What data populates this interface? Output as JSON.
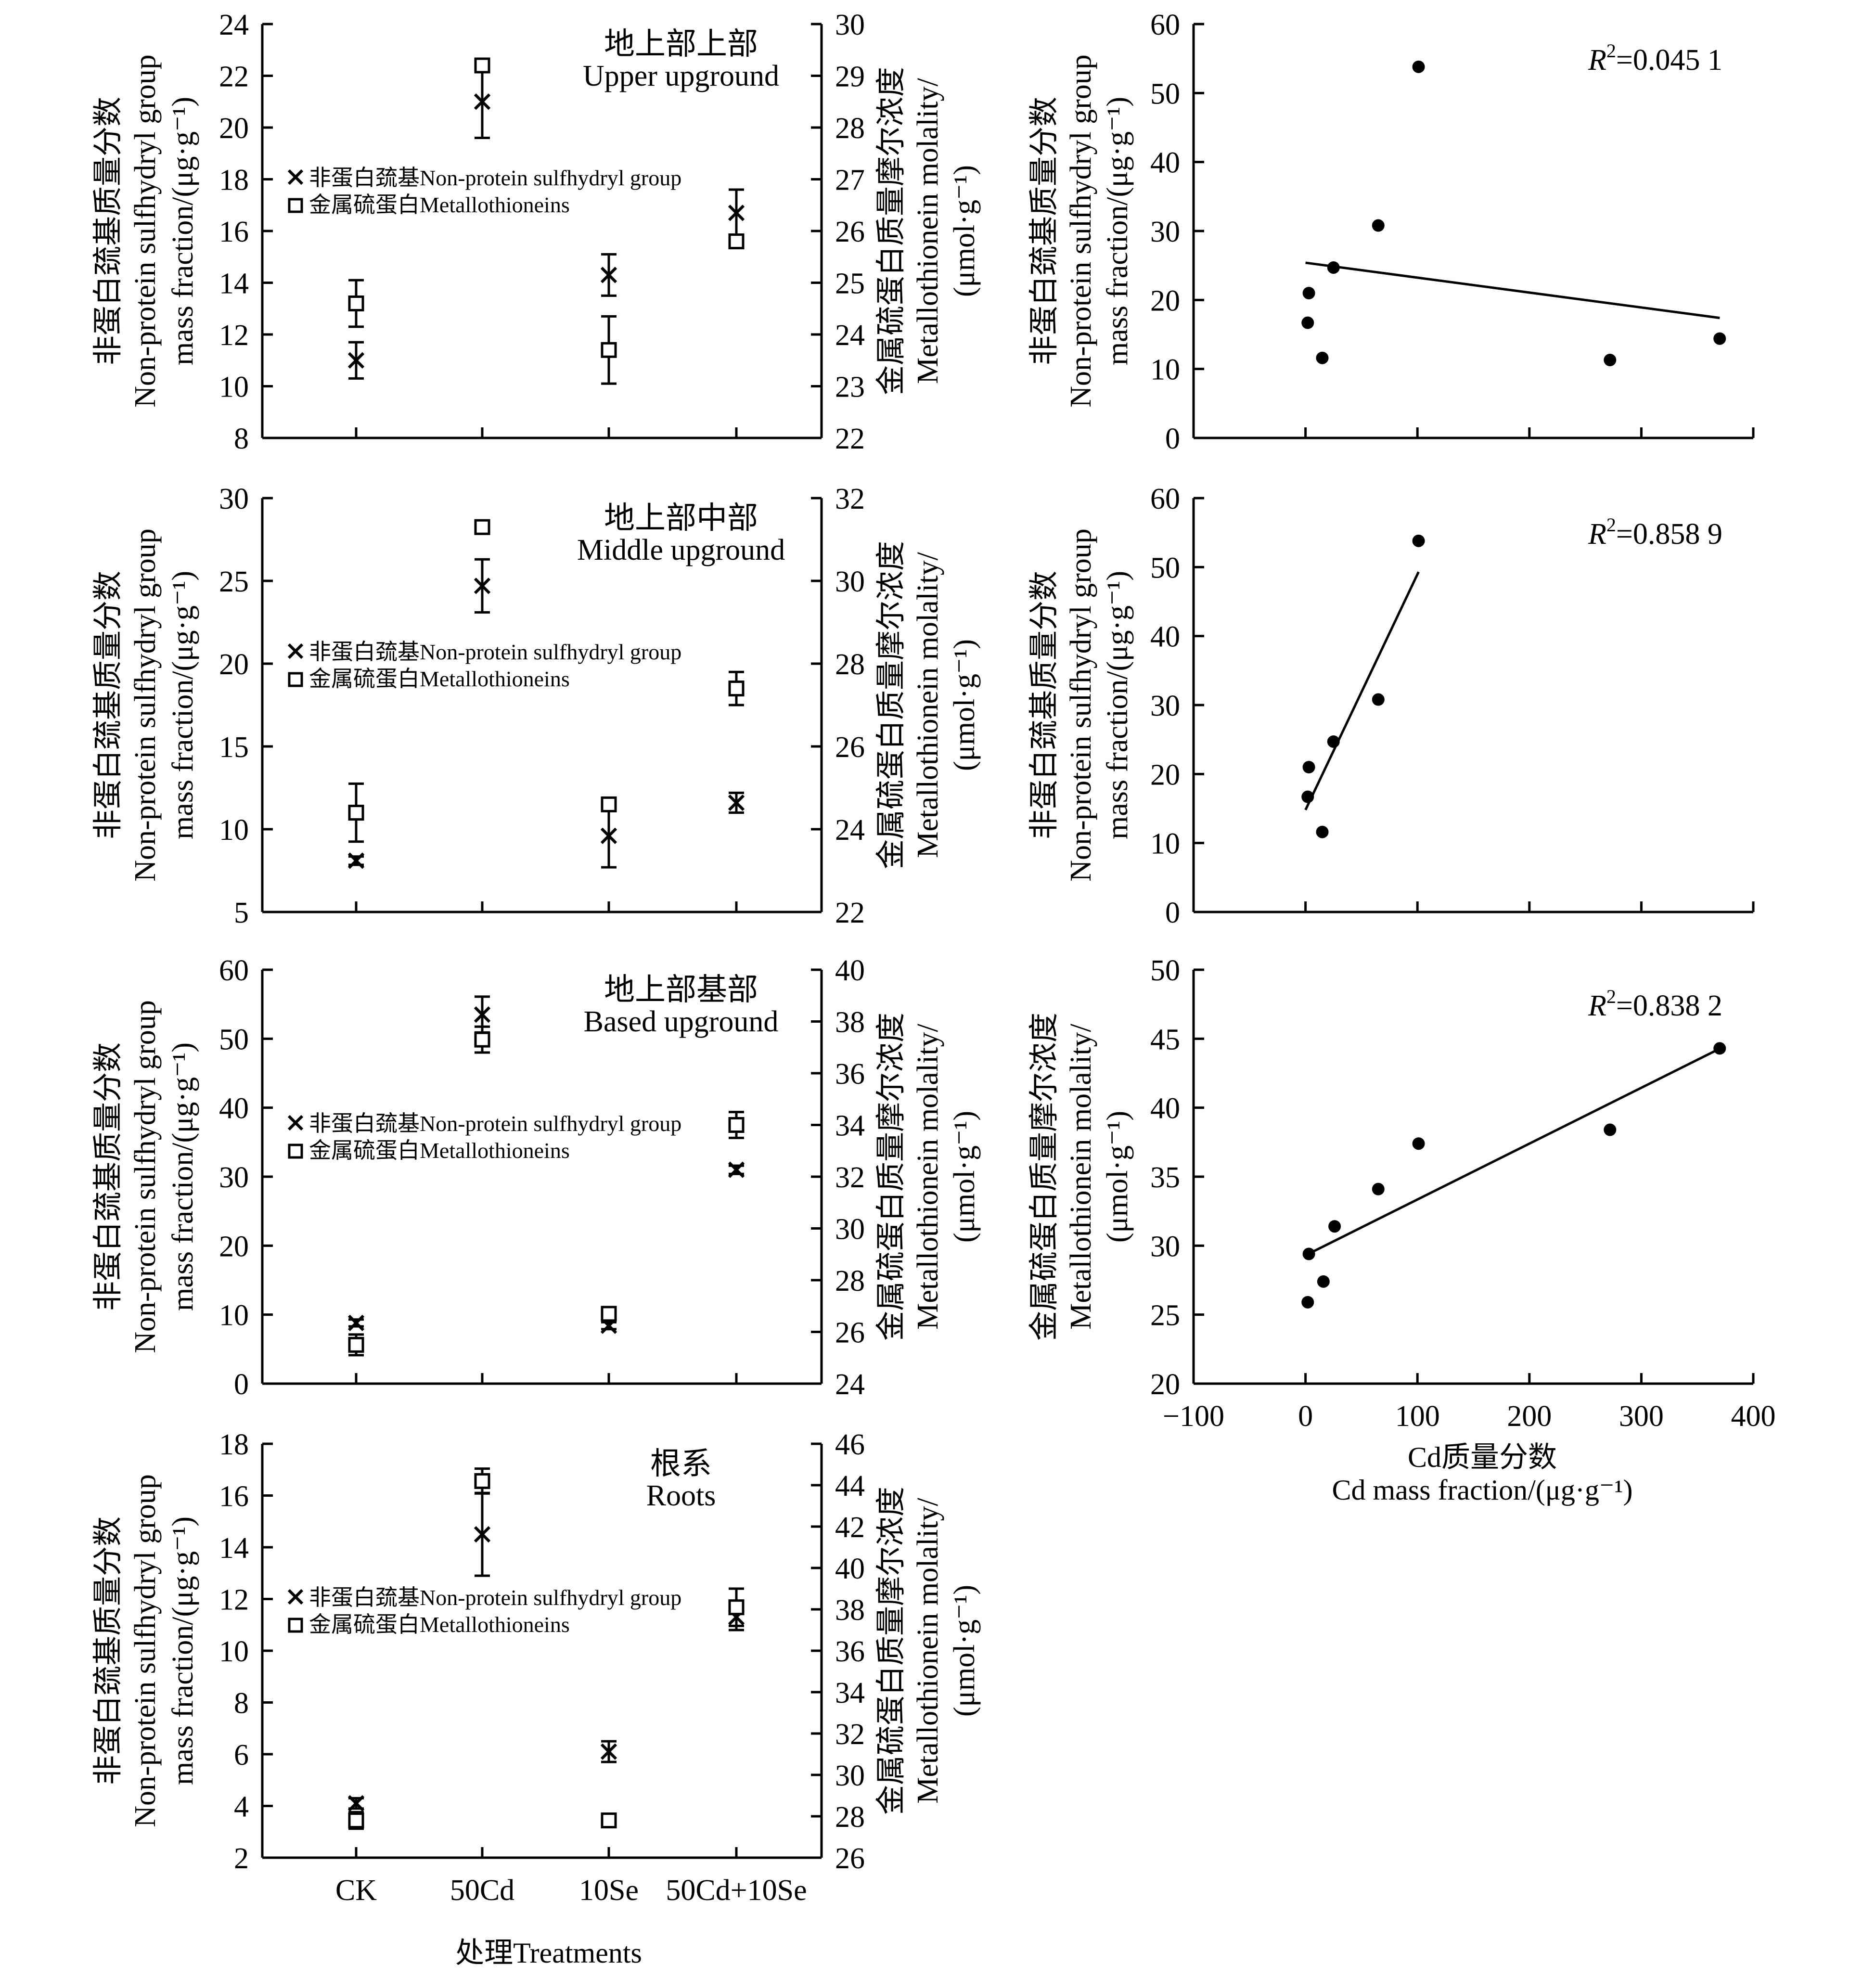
{
  "legend": {
    "nps": "非蛋白巯基Non-protein sulfhydryl group",
    "mt": "金属硫蛋白Metallothioneins"
  },
  "left_y_label": {
    "line1": "非蛋白巯基质量分数",
    "line2": "Non-protein sulfhydryl group",
    "line3": "mass fraction/(μg·g⁻¹)"
  },
  "right_y_label": {
    "line1": "金属硫蛋白质量摩尔浓度",
    "line2": "Metallothionein molality/",
    "line3": "(μmol·g⁻¹)"
  },
  "scatter_y_label_nps": {
    "line1": "非蛋白巯基质量分数",
    "line2": "Non-protein sulfhydryl group",
    "line3": "mass fraction/(μg·g⁻¹)"
  },
  "scatter_y_label_mt": {
    "line1": "金属硫蛋白质量摩尔浓度",
    "line2": "Metallothionein molality/",
    "line3": "(μmol·g⁻¹)"
  },
  "x_label_treatments": "处理Treatments",
  "x_label_cd": {
    "line1": "Cd质量分数",
    "line2": "Cd mass fraction/(μg·g⁻¹)"
  },
  "chart_data": [
    {
      "type": "scatter",
      "title_cn": "地上部上部",
      "title_en": "Upper upground",
      "categories": [
        "CK",
        "50Cd",
        "10Se",
        "50Cd+10Se"
      ],
      "ylim_left": [
        8,
        24
      ],
      "yticks_left": [
        8,
        10,
        12,
        14,
        16,
        18,
        20,
        22,
        24
      ],
      "ylim_right": [
        22,
        30
      ],
      "yticks_right": [
        22,
        23,
        24,
        25,
        26,
        27,
        28,
        29,
        30
      ],
      "series": [
        {
          "name": "非蛋白巯基Non-protein sulfhydryl group",
          "axis": "left",
          "marker": "x",
          "values": [
            11.0,
            21.0,
            14.3,
            16.7
          ],
          "errors": [
            0.7,
            1.4,
            0.8,
            0.9
          ]
        },
        {
          "name": "金属硫蛋白Metallothioneins",
          "axis": "right",
          "marker": "square",
          "values": [
            24.6,
            29.2,
            23.7,
            25.8
          ],
          "errors": [
            0.45,
            0.12,
            0.65,
            0.1
          ]
        }
      ]
    },
    {
      "type": "scatter",
      "title_cn": "地上部中部",
      "title_en": "Middle upground",
      "categories": [
        "CK",
        "50Cd",
        "10Se",
        "50Cd+10Se"
      ],
      "ylim_left": [
        5,
        30
      ],
      "yticks_left": [
        5,
        10,
        15,
        20,
        25,
        30
      ],
      "ylim_right": [
        22,
        32
      ],
      "yticks_right": [
        22,
        24,
        26,
        28,
        30,
        32
      ],
      "series": [
        {
          "name": "非蛋白巯基Non-protein sulfhydryl group",
          "axis": "left",
          "marker": "x",
          "values": [
            8.1,
            24.7,
            9.6,
            11.6
          ],
          "errors": [
            0.25,
            1.6,
            1.9,
            0.6
          ]
        },
        {
          "name": "金属硫蛋白Metallothioneins",
          "axis": "right",
          "marker": "square",
          "values": [
            24.4,
            31.3,
            24.6,
            27.4
          ],
          "errors": [
            0.7,
            0.1,
            0.1,
            0.4
          ]
        }
      ]
    },
    {
      "type": "scatter",
      "title_cn": "地上部基部",
      "title_en": "Based upground",
      "categories": [
        "CK",
        "50Cd",
        "10Se",
        "50Cd+10Se"
      ],
      "ylim_left": [
        0,
        60
      ],
      "yticks_left": [
        0,
        10,
        20,
        30,
        40,
        50,
        60
      ],
      "ylim_right": [
        24,
        40
      ],
      "yticks_right": [
        24,
        26,
        28,
        30,
        32,
        34,
        36,
        38,
        40
      ],
      "series": [
        {
          "name": "非蛋白巯基Non-protein sulfhydryl group",
          "axis": "left",
          "marker": "x",
          "values": [
            8.8,
            53.5,
            8.4,
            31.0
          ],
          "errors": [
            0.5,
            2.6,
            0.5,
            0.6
          ]
        },
        {
          "name": "金属硫蛋白Metallothioneins",
          "axis": "right",
          "marker": "square",
          "values": [
            25.5,
            37.3,
            26.7,
            34.0
          ],
          "errors": [
            0.4,
            0.5,
            0.15,
            0.5
          ]
        }
      ]
    },
    {
      "type": "scatter",
      "title_cn": "根系",
      "title_en": "Roots",
      "categories": [
        "CK",
        "50Cd",
        "10Se",
        "50Cd+10Se"
      ],
      "xlabel": "处理Treatments",
      "ylim_left": [
        2,
        18
      ],
      "yticks_left": [
        2,
        4,
        6,
        8,
        10,
        12,
        14,
        16,
        18
      ],
      "ylim_right": [
        26,
        46
      ],
      "yticks_right": [
        26,
        28,
        30,
        32,
        34,
        36,
        38,
        40,
        42,
        44,
        46
      ],
      "series": [
        {
          "name": "非蛋白巯基Non-protein sulfhydryl group",
          "axis": "left",
          "marker": "x",
          "values": [
            4.1,
            14.5,
            6.1,
            11.3
          ],
          "errors": [
            0.2,
            1.6,
            0.4,
            0.5
          ]
        },
        {
          "name": "金属硫蛋白Metallothioneins",
          "axis": "right",
          "marker": "square",
          "values": [
            27.8,
            44.2,
            27.8,
            38.1
          ],
          "errors": [
            0.4,
            0.6,
            0.1,
            0.9
          ]
        }
      ]
    },
    {
      "type": "scatter",
      "annotation": "R²=0.045 1",
      "xlim": [
        -100,
        400
      ],
      "xticks": [
        -100,
        0,
        100,
        200,
        300,
        400
      ],
      "ylim": [
        0,
        60
      ],
      "yticks": [
        0,
        10,
        20,
        30,
        40,
        50,
        60
      ],
      "points": [
        [
          2,
          16.7
        ],
        [
          3,
          21.0
        ],
        [
          15,
          11.6
        ],
        [
          25,
          24.7
        ],
        [
          65,
          30.8
        ],
        [
          101,
          53.8
        ],
        [
          272,
          11.3
        ],
        [
          370,
          14.4
        ]
      ],
      "fit_line": [
        [
          0,
          25.4
        ],
        [
          370,
          17.4
        ]
      ]
    },
    {
      "type": "scatter",
      "annotation": "R²=0.858 9",
      "xlim": [
        -100,
        400
      ],
      "xticks": [
        -100,
        0,
        100,
        200,
        300,
        400
      ],
      "ylim": [
        0,
        60
      ],
      "yticks": [
        0,
        10,
        20,
        30,
        40,
        50,
        60
      ],
      "points": [
        [
          2,
          16.7
        ],
        [
          3,
          21.0
        ],
        [
          15,
          11.6
        ],
        [
          25,
          24.7
        ],
        [
          65,
          30.8
        ],
        [
          101,
          53.8
        ]
      ],
      "fit_line": [
        [
          0,
          14.8
        ],
        [
          101,
          49.3
        ]
      ]
    },
    {
      "type": "scatter",
      "annotation": "R²=0.838 2",
      "xlabel": "Cd质量分数 / Cd mass fraction/(μg·g⁻¹)",
      "xlim": [
        -100,
        400
      ],
      "xticks": [
        -100,
        0,
        100,
        200,
        300,
        400
      ],
      "ylim": [
        20,
        50
      ],
      "yticks": [
        20,
        25,
        30,
        35,
        40,
        45,
        50
      ],
      "points": [
        [
          2,
          25.9
        ],
        [
          3,
          29.4
        ],
        [
          16,
          27.4
        ],
        [
          26,
          31.4
        ],
        [
          65,
          34.1
        ],
        [
          101,
          37.4
        ],
        [
          272,
          38.4
        ],
        [
          370,
          44.3
        ]
      ],
      "fit_line": [
        [
          0,
          29.3
        ],
        [
          368,
          44.2
        ]
      ]
    }
  ]
}
